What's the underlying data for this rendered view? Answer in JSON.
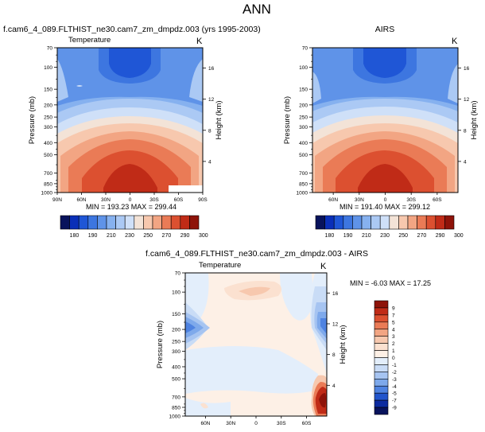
{
  "page": {
    "title": "ANN"
  },
  "panels": [
    {
      "id": "model",
      "left_string": "f.cam6_4_089.FLTHIST_ne30.cam7_zm_dmpdz.003 (yrs 1995-2003)",
      "center_string": "",
      "sub_left": "Temperature",
      "sub_right": "K",
      "stats": "MIN = 193.23  MAX = 299.44"
    },
    {
      "id": "obs",
      "left_string": "",
      "center_string": "AIRS",
      "sub_left": "",
      "sub_right": "K",
      "stats": "MIN = 191.40  MAX = 299.12"
    },
    {
      "id": "diff",
      "left_string": "",
      "center_string": "f.cam6_4_089.FLTHIST_ne30.cam7_zm_dmpdz.003 - AIRS",
      "sub_left": "Temperature",
      "sub_right": "K",
      "stats": "MIN = -6.03  MAX = 17.25"
    }
  ],
  "axes": {
    "ylabel": "Pressure (mb)",
    "ylabel_right": "Height (km)",
    "pressure_ticks": [
      "70",
      "100",
      "150",
      "200",
      "250",
      "300",
      "400",
      "500",
      "700",
      "850",
      "1000"
    ],
    "height_ticks": [
      "16",
      "12",
      "8",
      "4"
    ],
    "lat_ticks_full": [
      "90N",
      "60N",
      "30N",
      "0",
      "30S",
      "60S",
      "90S"
    ],
    "lat_ticks_inner": [
      "60N",
      "30N",
      "0",
      "30S",
      "60S"
    ]
  },
  "colorbars": {
    "abs_labels": [
      "180",
      "190",
      "210",
      "230",
      "250",
      "270",
      "290",
      "300"
    ],
    "abs_colors": [
      "#08135c",
      "#0a2fb8",
      "#1f56d6",
      "#3d76e0",
      "#5f93e8",
      "#86b1ef",
      "#abc9f4",
      "#cfe0f8",
      "#f3e3d7",
      "#f7c8ae",
      "#f2a583",
      "#ea7b56",
      "#dc5030",
      "#c02b17",
      "#8e1309"
    ],
    "diff_labels": [
      "9",
      "7",
      "5",
      "4",
      "3",
      "2",
      "1",
      "0",
      "-1",
      "-2",
      "-3",
      "-4",
      "-5",
      "-7",
      "-9"
    ],
    "diff_colors": [
      "#8e1309",
      "#c02b17",
      "#dc5030",
      "#ea7b56",
      "#f2a583",
      "#f7c8ae",
      "#fbe1d0",
      "#fdf0e6",
      "#e3eefb",
      "#c9dcf6",
      "#a6c4f1",
      "#7ea9eb",
      "#4f83e1",
      "#2255cc",
      "#0c2ba0",
      "#08135c"
    ]
  },
  "chart_data": [
    {
      "type": "heatmap",
      "title": "f.cam6_4_089.FLTHIST_ne30.cam7_zm_dmpdz.003 (yrs 1995-2003)",
      "variable": "Temperature",
      "units": "K",
      "xlabel": "",
      "ylabel": "Pressure (mb)",
      "x_ticks": [
        "90N",
        "60N",
        "30N",
        "0",
        "30S",
        "60S",
        "90S"
      ],
      "y_ticks": [
        "70",
        "100",
        "150",
        "200",
        "250",
        "300",
        "400",
        "500",
        "700",
        "850",
        "1000"
      ],
      "min": 193.23,
      "max": 299.44,
      "contour_levels": [
        180,
        190,
        210,
        230,
        250,
        270,
        290,
        300
      ]
    },
    {
      "type": "heatmap",
      "title": "AIRS",
      "units": "K",
      "ylabel": "Pressure (mb)",
      "x_ticks": [
        "60N",
        "30N",
        "0",
        "30S",
        "60S"
      ],
      "y_ticks": [
        "70",
        "100",
        "150",
        "200",
        "250",
        "300",
        "400",
        "500",
        "700",
        "850",
        "1000"
      ],
      "min": 191.4,
      "max": 299.12,
      "contour_levels": [
        180,
        190,
        210,
        230,
        250,
        270,
        290,
        300
      ]
    },
    {
      "type": "heatmap",
      "title": "f.cam6_4_089.FLTHIST_ne30.cam7_zm_dmpdz.003 - AIRS",
      "variable": "Temperature",
      "units": "K",
      "ylabel": "Pressure (mb)",
      "x_ticks": [
        "60N",
        "30N",
        "0",
        "30S",
        "60S"
      ],
      "y_ticks": [
        "70",
        "100",
        "150",
        "200",
        "250",
        "300",
        "400",
        "500",
        "700",
        "850",
        "1000"
      ],
      "min": -6.03,
      "max": 17.25,
      "contour_levels": [
        -9,
        -7,
        -5,
        -4,
        -3,
        -2,
        -1,
        0,
        1,
        2,
        3,
        4,
        5,
        7,
        9
      ]
    }
  ]
}
